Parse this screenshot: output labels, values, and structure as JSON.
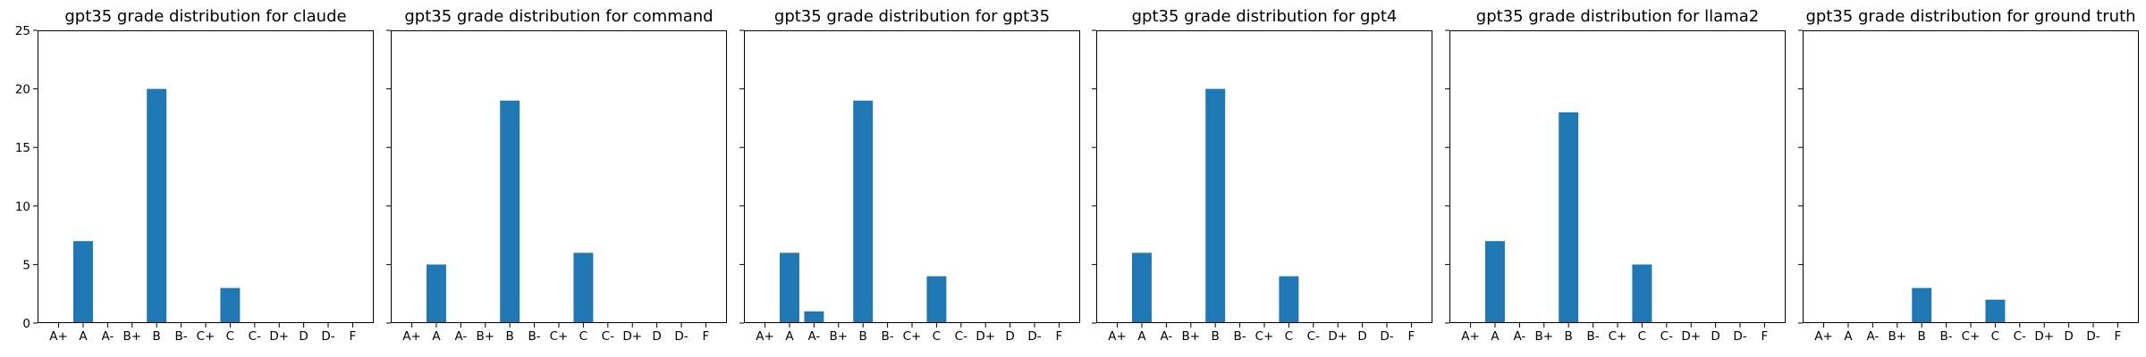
{
  "colors": {
    "bar": "#1f77b4",
    "frame": "#000000",
    "text": "#000000",
    "background": "#ffffff"
  },
  "chart_data": [
    {
      "type": "bar",
      "title": "gpt35 grade distribution for claude",
      "categories": [
        "A+",
        "A",
        "A-",
        "B+",
        "B",
        "B-",
        "C+",
        "C",
        "C-",
        "D+",
        "D",
        "D-",
        "F"
      ],
      "values": [
        0,
        7,
        0,
        0,
        20,
        0,
        0,
        3,
        0,
        0,
        0,
        0,
        0
      ],
      "ylim": [
        0,
        25
      ],
      "yticks": [
        0,
        5,
        10,
        15,
        20,
        25
      ],
      "show_y_tick_labels": true
    },
    {
      "type": "bar",
      "title": "gpt35 grade distribution for command",
      "categories": [
        "A+",
        "A",
        "A-",
        "B+",
        "B",
        "B-",
        "C+",
        "C",
        "C-",
        "D+",
        "D",
        "D-",
        "F"
      ],
      "values": [
        0,
        5,
        0,
        0,
        19,
        0,
        0,
        6,
        0,
        0,
        0,
        0,
        0
      ],
      "ylim": [
        0,
        25
      ],
      "yticks": [
        0,
        5,
        10,
        15,
        20,
        25
      ],
      "show_y_tick_labels": false
    },
    {
      "type": "bar",
      "title": "gpt35 grade distribution for gpt35",
      "categories": [
        "A+",
        "A",
        "A-",
        "B+",
        "B",
        "B-",
        "C+",
        "C",
        "C-",
        "D+",
        "D",
        "D-",
        "F"
      ],
      "values": [
        0,
        6,
        1,
        0,
        19,
        0,
        0,
        4,
        0,
        0,
        0,
        0,
        0
      ],
      "ylim": [
        0,
        25
      ],
      "yticks": [
        0,
        5,
        10,
        15,
        20,
        25
      ],
      "show_y_tick_labels": false
    },
    {
      "type": "bar",
      "title": "gpt35 grade distribution for gpt4",
      "categories": [
        "A+",
        "A",
        "A-",
        "B+",
        "B",
        "B-",
        "C+",
        "C",
        "C-",
        "D+",
        "D",
        "D-",
        "F"
      ],
      "values": [
        0,
        6,
        0,
        0,
        20,
        0,
        0,
        4,
        0,
        0,
        0,
        0,
        0
      ],
      "ylim": [
        0,
        25
      ],
      "yticks": [
        0,
        5,
        10,
        15,
        20,
        25
      ],
      "show_y_tick_labels": false
    },
    {
      "type": "bar",
      "title": "gpt35 grade distribution for llama2",
      "categories": [
        "A+",
        "A",
        "A-",
        "B+",
        "B",
        "B-",
        "C+",
        "C",
        "C-",
        "D+",
        "D",
        "D-",
        "F"
      ],
      "values": [
        0,
        7,
        0,
        0,
        18,
        0,
        0,
        5,
        0,
        0,
        0,
        0,
        0
      ],
      "ylim": [
        0,
        25
      ],
      "yticks": [
        0,
        5,
        10,
        15,
        20,
        25
      ],
      "show_y_tick_labels": false
    },
    {
      "type": "bar",
      "title": "gpt35 grade distribution for ground truth",
      "categories": [
        "A+",
        "A",
        "A-",
        "B+",
        "B",
        "B-",
        "C+",
        "C",
        "C-",
        "D+",
        "D",
        "D-",
        "F"
      ],
      "values": [
        0,
        0,
        0,
        0,
        3,
        0,
        0,
        2,
        0,
        0,
        0,
        0,
        0
      ],
      "ylim": [
        0,
        25
      ],
      "yticks": [
        0,
        5,
        10,
        15,
        20,
        25
      ],
      "show_y_tick_labels": false
    }
  ]
}
